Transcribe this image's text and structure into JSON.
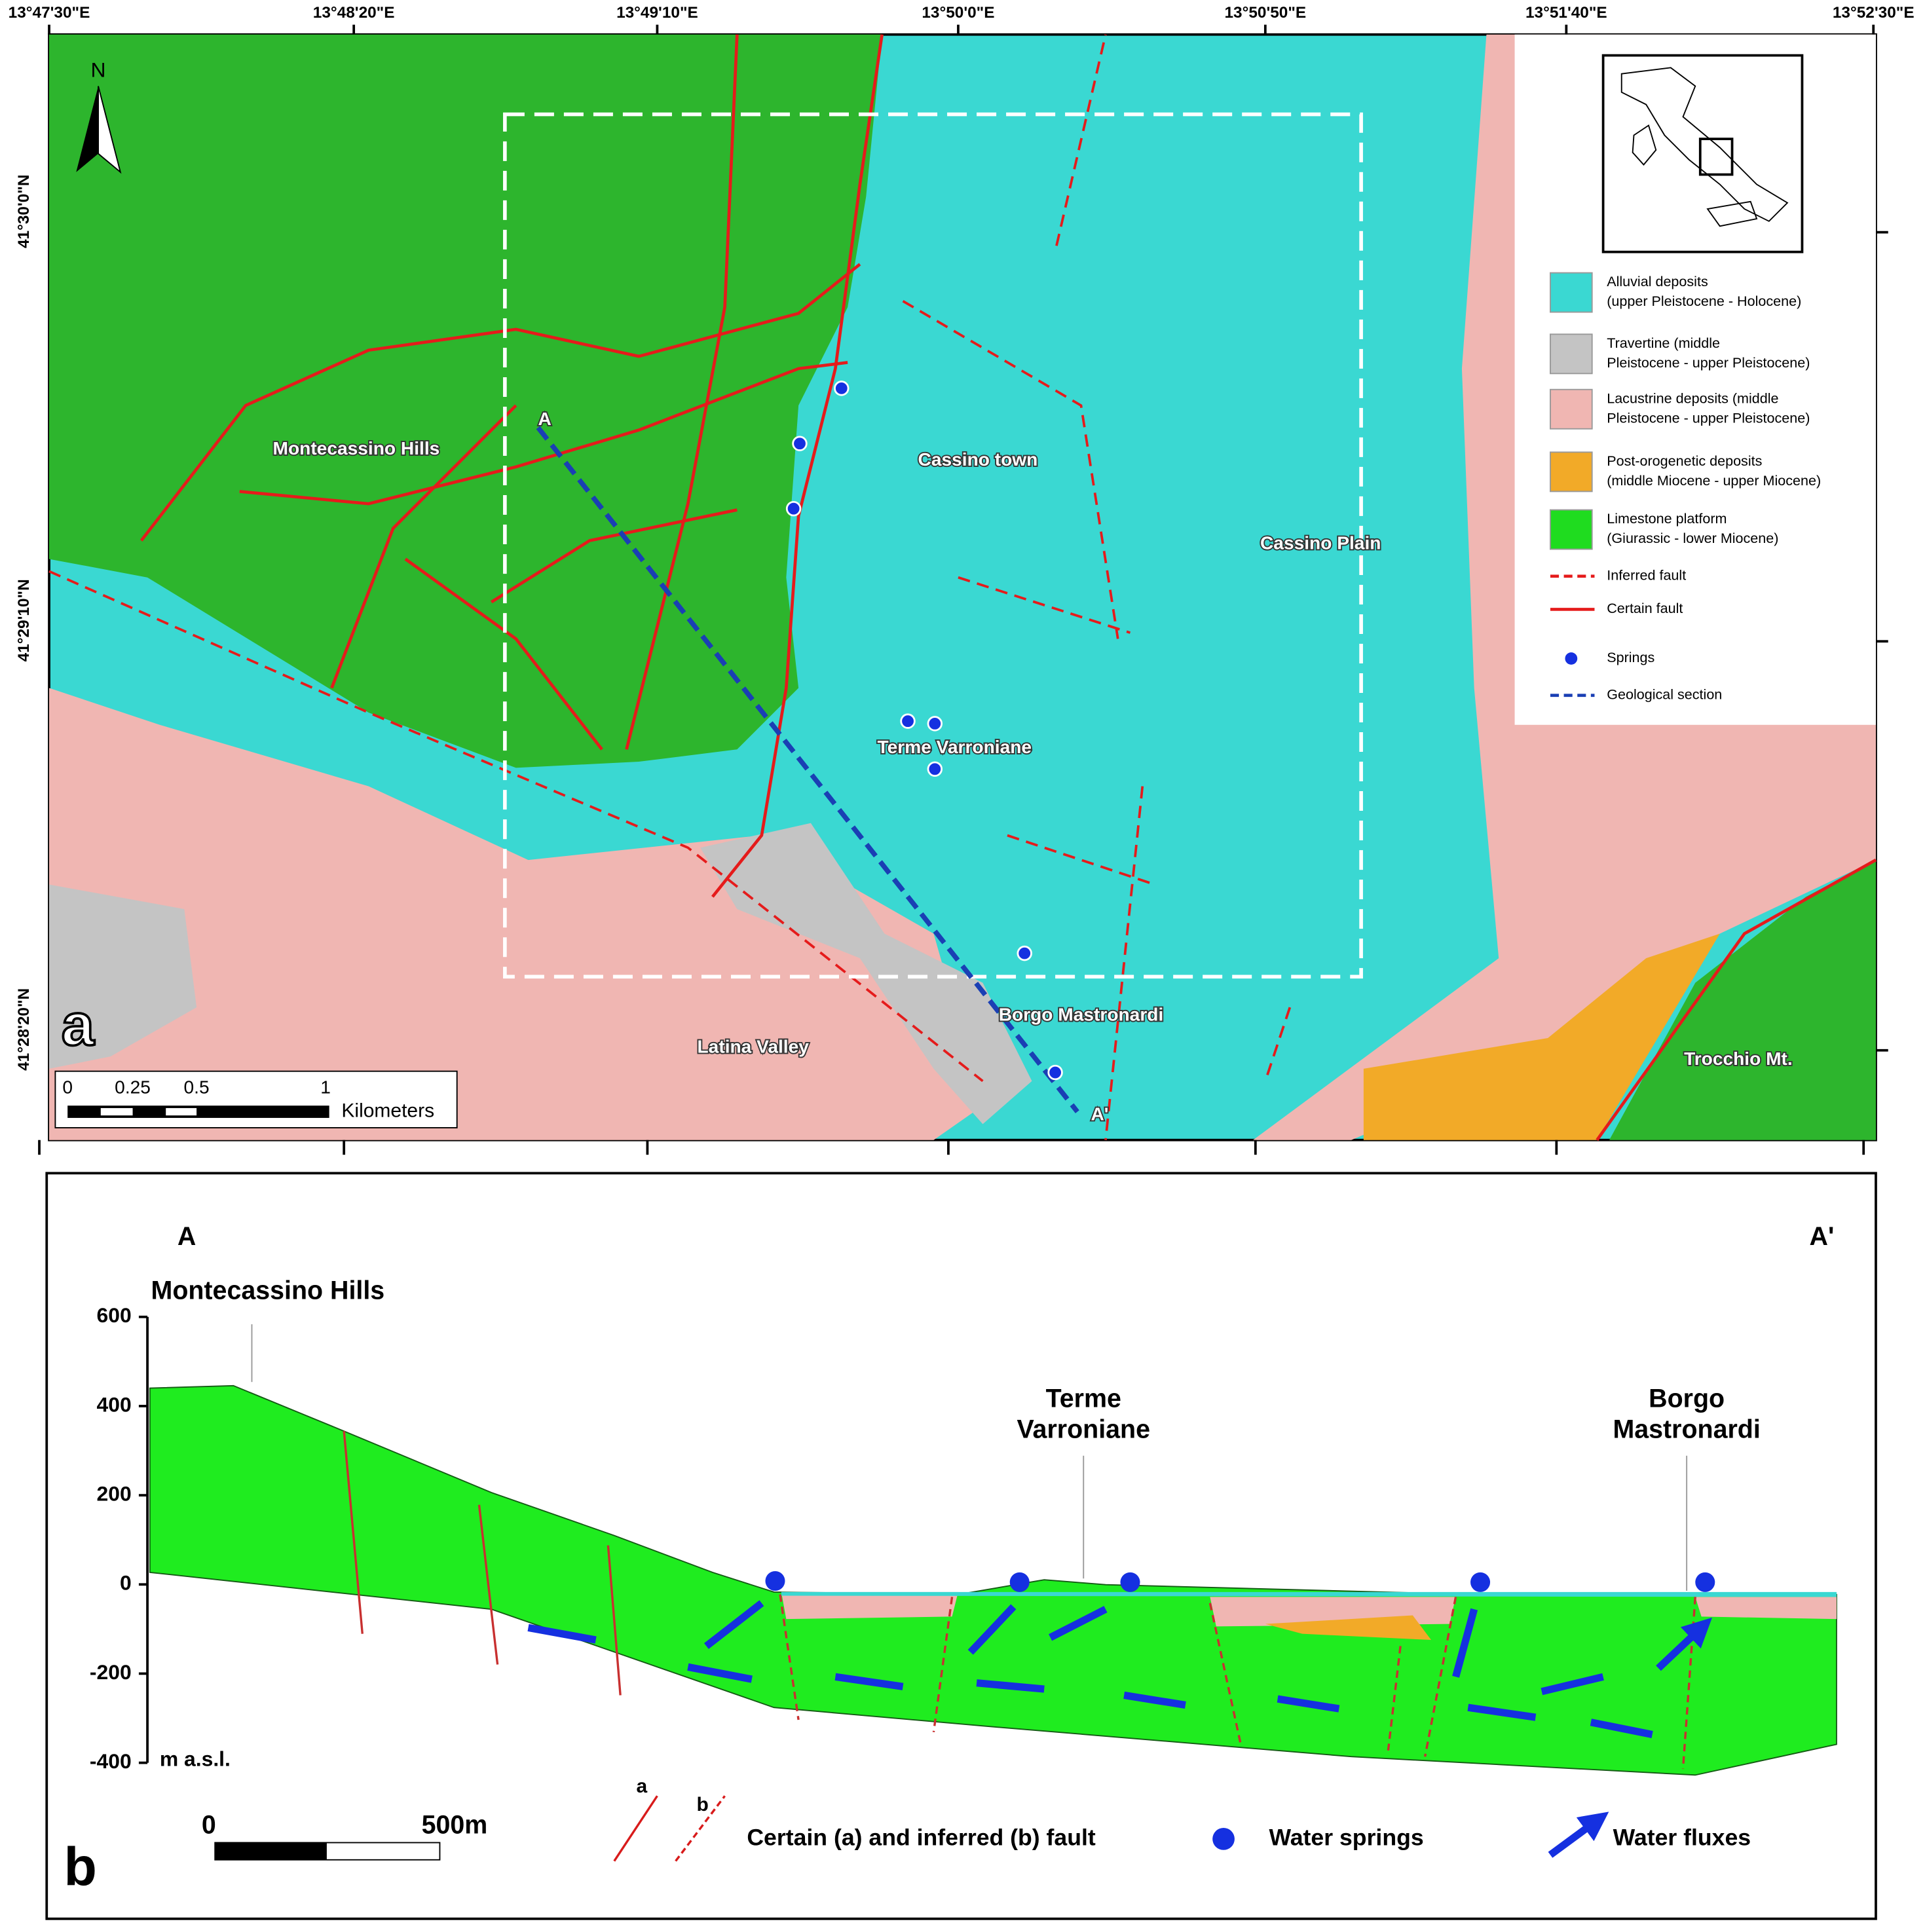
{
  "panel_a": {
    "label": "a",
    "lon_ticks": [
      "13°47'30\"E",
      "13°48'20\"E",
      "13°49'10\"E",
      "13°50'0\"E",
      "13°50'50\"E",
      "13°51'40\"E",
      "13°52'30\"E"
    ],
    "lat_ticks": [
      "41°30'0\"N",
      "41°29'10\"N",
      "41°28'20\"N"
    ],
    "north": "N",
    "section_ends": [
      "A",
      "A'"
    ],
    "places": [
      "Montecassino Hills",
      "Cassino town",
      "Cassino Plain",
      "Terme Varroniane",
      "Borgo Mastronardi",
      "Latina Valley",
      "Trocchio Mt."
    ],
    "scale_bar": {
      "ticks": [
        "0",
        "0.25",
        "0.5",
        "1"
      ],
      "unit": "Kilometers"
    },
    "legend": [
      {
        "lines": [
          "Alluvial deposits",
          "(upper Pleistocene - Holocene)"
        ],
        "color": "#3ad8d2"
      },
      {
        "lines": [
          "Travertine (middle",
          "Pleistocene - upper Pleistocene)"
        ],
        "color": "#c4c4c4"
      },
      {
        "lines": [
          "Lacustrine deposits (middle",
          "Pleistocene - upper Pleistocene)"
        ],
        "color": "#f0b6b2"
      },
      {
        "lines": [
          "Post-orogenetic deposits",
          "(middle Miocene - upper Miocene)"
        ],
        "color": "#f2aa28"
      },
      {
        "lines": [
          "Limestone platform",
          "(Giurassic - lower Miocene)"
        ],
        "color": "#1fdc1f"
      },
      {
        "lines": [
          "Inferred fault"
        ],
        "symbol": "inferred"
      },
      {
        "lines": [
          "Certain fault"
        ],
        "symbol": "certain"
      },
      {
        "lines": [
          "Springs"
        ],
        "symbol": "spring"
      },
      {
        "lines": [
          "Geological section"
        ],
        "symbol": "section"
      }
    ]
  },
  "panel_b": {
    "label": "b",
    "section_ends": [
      "A",
      "A'"
    ],
    "places": [
      [
        "Montecassino Hills"
      ],
      [
        "Terme",
        "Varroniane"
      ],
      [
        "Borgo",
        "Mastronardi"
      ]
    ],
    "yticks": [
      600,
      400,
      200,
      0,
      -200,
      -400
    ],
    "ylim": [
      -400,
      600
    ],
    "y_unit": "m a.s.l.",
    "scale_bar": [
      "0",
      "500m"
    ],
    "legend": {
      "fault_marks": [
        "a",
        "b"
      ],
      "fault": "Certain (a) and inferred (b) fault",
      "springs": "Water springs",
      "fluxes": "Water fluxes"
    }
  }
}
